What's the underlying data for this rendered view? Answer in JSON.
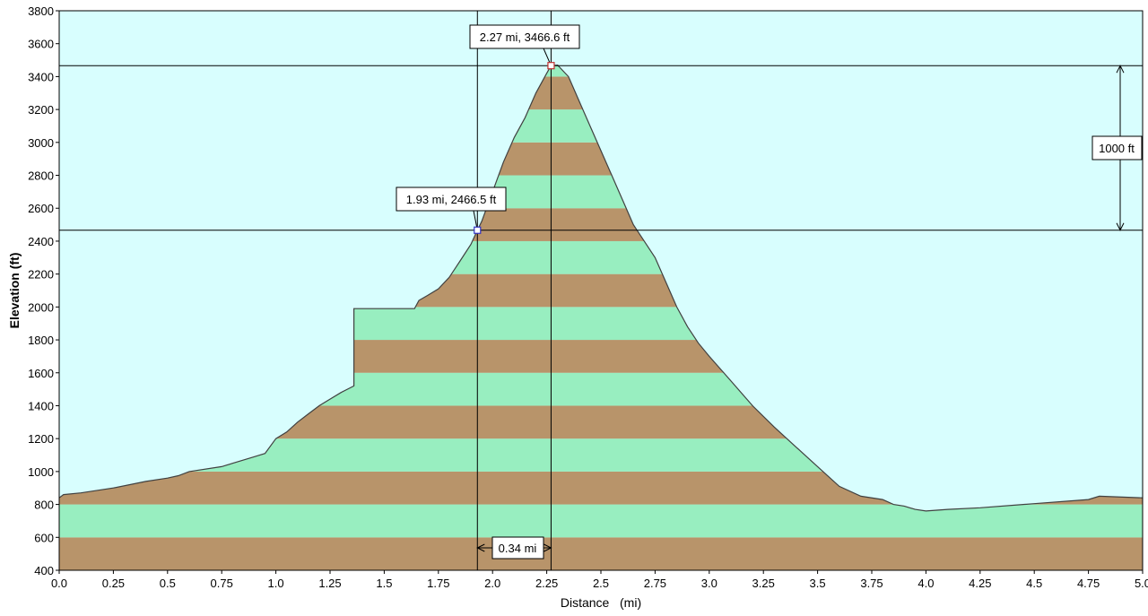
{
  "chart_data": {
    "type": "area",
    "xlabel": "Distance   (mi)",
    "ylabel": "Elevation (ft)",
    "xlim": [
      0,
      5.0
    ],
    "ylim": [
      400,
      3800
    ],
    "x_ticks": [
      "0.0",
      "0.25",
      "0.5",
      "0.75",
      "1.0",
      "1.25",
      "1.5",
      "1.75",
      "2.0",
      "2.25",
      "2.5",
      "2.75",
      "3.0",
      "3.25",
      "3.5",
      "3.75",
      "4.0",
      "4.25",
      "4.5",
      "4.75",
      "5.0"
    ],
    "y_ticks": [
      "400",
      "600",
      "800",
      "1000",
      "1200",
      "1400",
      "1600",
      "1800",
      "2000",
      "2200",
      "2400",
      "2600",
      "2800",
      "3000",
      "3200",
      "3400",
      "3600",
      "3800"
    ],
    "band_interval_ft": 200,
    "colors": {
      "sky": "#d8fefe",
      "band_dark": "#b8946a",
      "band_light": "#98eec0",
      "line": "#404040"
    },
    "x": [
      0.0,
      0.02,
      0.1,
      0.25,
      0.4,
      0.5,
      0.55,
      0.6,
      0.75,
      0.8,
      0.9,
      0.95,
      1.0,
      1.05,
      1.1,
      1.15,
      1.2,
      1.25,
      1.3,
      1.33,
      1.36,
      1.36,
      1.5,
      1.64,
      1.66,
      1.7,
      1.75,
      1.8,
      1.85,
      1.9,
      1.93,
      1.95,
      2.0,
      2.05,
      2.1,
      2.15,
      2.2,
      2.25,
      2.27,
      2.3,
      2.35,
      2.4,
      2.45,
      2.5,
      2.55,
      2.6,
      2.65,
      2.7,
      2.75,
      2.8,
      2.85,
      2.9,
      2.95,
      3.0,
      3.1,
      3.2,
      3.3,
      3.4,
      3.5,
      3.6,
      3.7,
      3.8,
      3.85,
      3.9,
      3.95,
      4.0,
      4.05,
      4.1,
      4.25,
      4.5,
      4.75,
      4.8,
      5.0
    ],
    "y": [
      840,
      860,
      870,
      900,
      940,
      960,
      975,
      1000,
      1030,
      1050,
      1090,
      1110,
      1200,
      1240,
      1300,
      1350,
      1400,
      1440,
      1480,
      1500,
      1520,
      1990,
      1990,
      1990,
      2040,
      2070,
      2110,
      2180,
      2280,
      2380,
      2466.5,
      2520,
      2700,
      2880,
      3030,
      3150,
      3300,
      3420,
      3466.6,
      3470,
      3400,
      3250,
      3100,
      2950,
      2800,
      2650,
      2500,
      2400,
      2300,
      2150,
      2000,
      1880,
      1780,
      1700,
      1550,
      1400,
      1270,
      1150,
      1030,
      910,
      850,
      830,
      800,
      790,
      770,
      760,
      765,
      770,
      780,
      805,
      830,
      850,
      840
    ],
    "crosshair_x": [
      1.93,
      2.27
    ],
    "annotations": {
      "point_a": "1.93 mi, 2466.5 ft",
      "point_b": "2.27 mi, 3466.6 ft",
      "delta_elevation": "1000 ft",
      "delta_distance": "0.34 mi"
    },
    "annotation_points": [
      {
        "x": 1.93,
        "y": 2466.5
      },
      {
        "x": 2.27,
        "y": 3466.6
      }
    ]
  }
}
